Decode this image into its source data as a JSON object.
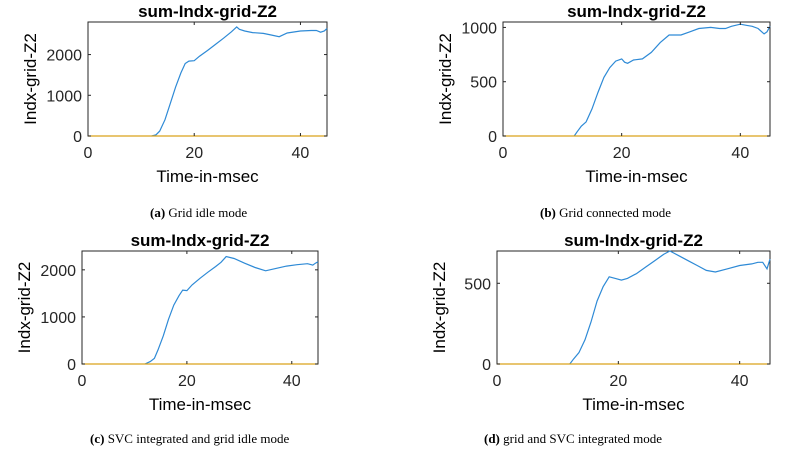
{
  "chart_data": [
    {
      "type": "line",
      "title": "sum-Indx-grid-Z2",
      "xlabel": "Time-in-msec",
      "ylabel": "Indx-grid-Z2",
      "xlim": [
        0,
        45
      ],
      "ylim": [
        0,
        2800
      ],
      "xticks": [
        0,
        20,
        40
      ],
      "yticks": [
        0,
        1000,
        2000
      ],
      "series": [
        {
          "name": "main",
          "color": "#2e8ad6",
          "x": [
            12,
            12.8,
            13.5,
            14.5,
            15.5,
            16.5,
            17.5,
            18.3,
            19,
            20,
            21,
            22.5,
            24,
            25.5,
            27,
            28,
            28.5,
            29.5,
            31,
            33,
            34.5,
            36,
            37.5,
            40,
            42,
            43,
            43.8,
            44.5,
            45
          ],
          "y": [
            0,
            30,
            120,
            400,
            800,
            1200,
            1550,
            1780,
            1840,
            1850,
            1960,
            2100,
            2250,
            2400,
            2560,
            2680,
            2620,
            2580,
            2540,
            2520,
            2480,
            2440,
            2530,
            2580,
            2590,
            2590,
            2550,
            2580,
            2640
          ]
        },
        {
          "name": "zero",
          "color": "#d9a21b",
          "x": [
            0,
            45
          ],
          "y": [
            0,
            0
          ]
        }
      ],
      "caption_label": "(a)",
      "caption_text": "Grid idle mode"
    },
    {
      "type": "line",
      "title": "sum-Indx-grid-Z2",
      "xlabel": "Time-in-msec",
      "ylabel": "Indx-grid-Z2",
      "xlim": [
        0,
        45
      ],
      "ylim": [
        0,
        1050
      ],
      "xticks": [
        0,
        20,
        40
      ],
      "yticks": [
        0,
        500,
        1000
      ],
      "series": [
        {
          "name": "main",
          "color": "#2e8ad6",
          "x": [
            12,
            12.5,
            13.2,
            14,
            15,
            16,
            17,
            18,
            19,
            20,
            20.5,
            21,
            22,
            23.5,
            25,
            26.5,
            28,
            30,
            31.5,
            33,
            35,
            36.5,
            37.5,
            38.5,
            40,
            41,
            42,
            43,
            44,
            44.5,
            45
          ],
          "y": [
            0,
            40,
            90,
            130,
            250,
            400,
            540,
            630,
            690,
            710,
            680,
            670,
            700,
            710,
            770,
            860,
            930,
            930,
            960,
            990,
            1000,
            990,
            990,
            1010,
            1030,
            1020,
            1010,
            990,
            940,
            960,
            1010
          ]
        },
        {
          "name": "zero",
          "color": "#d9a21b",
          "x": [
            0,
            45
          ],
          "y": [
            0,
            0
          ]
        }
      ],
      "caption_label": "(b)",
      "caption_text": "Grid connected mode"
    },
    {
      "type": "line",
      "title": "sum-Indx-grid-Z2",
      "xlabel": "Time-in-msec",
      "ylabel": "Indx-grid-Z2",
      "xlim": [
        0,
        45
      ],
      "ylim": [
        0,
        2400
      ],
      "xticks": [
        0,
        20,
        40
      ],
      "yticks": [
        0,
        1000,
        2000
      ],
      "series": [
        {
          "name": "main",
          "color": "#2e8ad6",
          "x": [
            12,
            13,
            13.8,
            14.5,
            15.5,
            16.5,
            17.5,
            18.5,
            19.2,
            20,
            21,
            22.5,
            24,
            25.5,
            26.5,
            27.5,
            29,
            31,
            33,
            35,
            37,
            39,
            41,
            43,
            44,
            44.5,
            45
          ],
          "y": [
            0,
            50,
            120,
            300,
            600,
            950,
            1250,
            1450,
            1570,
            1560,
            1680,
            1820,
            1950,
            2070,
            2160,
            2280,
            2240,
            2140,
            2050,
            1980,
            2030,
            2080,
            2110,
            2130,
            2100,
            2140,
            2170
          ]
        },
        {
          "name": "zero",
          "color": "#d9a21b",
          "x": [
            0,
            45
          ],
          "y": [
            0,
            0
          ]
        }
      ],
      "caption_label": "(c)",
      "caption_text": "SVC integrated and grid idle mode"
    },
    {
      "type": "line",
      "title": "sum-Indx-grid-Z2",
      "xlabel": "Time-in-msec",
      "ylabel": "Indx-grid-Z2",
      "xlim": [
        0,
        45
      ],
      "ylim": [
        0,
        700
      ],
      "xticks": [
        0,
        20,
        40
      ],
      "yticks": [
        0,
        500
      ],
      "series": [
        {
          "name": "main",
          "color": "#2e8ad6",
          "x": [
            12,
            12.6,
            13.5,
            14.5,
            15.5,
            16.5,
            17.5,
            18.5,
            19.5,
            20.5,
            21.5,
            23,
            24.5,
            26,
            27.5,
            28.5,
            30,
            31.5,
            33,
            34.5,
            36,
            38,
            40,
            42,
            43,
            43.8,
            44.5,
            45
          ],
          "y": [
            0,
            30,
            70,
            150,
            260,
            390,
            480,
            540,
            530,
            520,
            530,
            560,
            600,
            640,
            680,
            700,
            670,
            640,
            610,
            580,
            570,
            590,
            610,
            620,
            630,
            630,
            590,
            650
          ]
        },
        {
          "name": "zero",
          "color": "#d9a21b",
          "x": [
            0,
            45
          ],
          "y": [
            0,
            0
          ]
        }
      ],
      "caption_label": "(d)",
      "caption_text": "grid and SVC integrated mode"
    }
  ]
}
